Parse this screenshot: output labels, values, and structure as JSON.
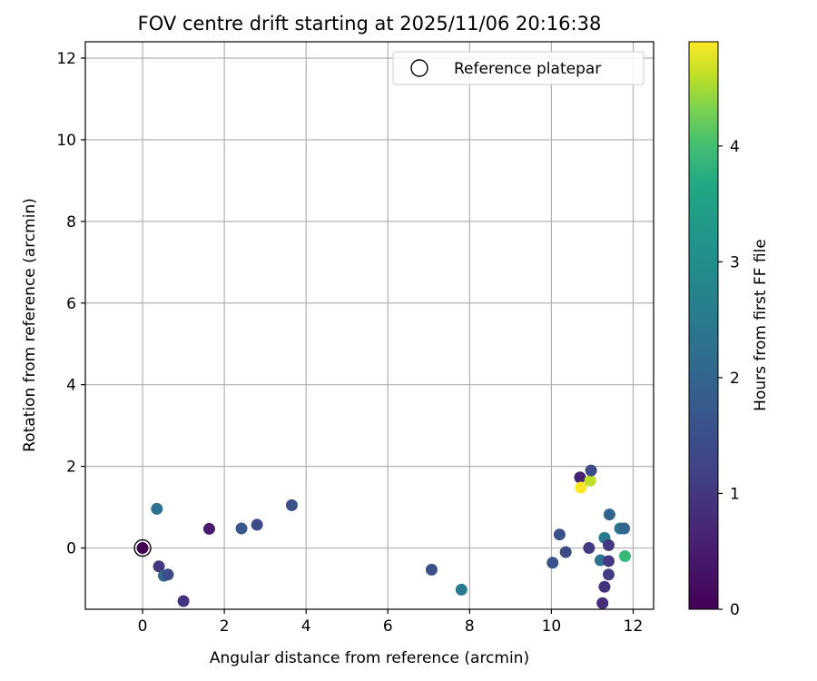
{
  "chart_data": {
    "type": "scatter",
    "title": "FOV centre drift starting at 2025/11/06 20:16:38",
    "xlabel": "Angular distance from reference (arcmin)",
    "ylabel": "Rotation from reference (arcmin)",
    "xlim": [
      -1.4,
      12.5
    ],
    "ylim": [
      -1.5,
      12.4
    ],
    "x_ticks": [
      0,
      2,
      4,
      6,
      8,
      10,
      12
    ],
    "y_ticks": [
      0,
      2,
      4,
      6,
      8,
      10,
      12
    ],
    "grid": true,
    "legend": {
      "position": "top-right",
      "entries": [
        "Reference platepar"
      ]
    },
    "colorbar": {
      "label": "Hours from first FF file",
      "range": [
        0,
        4.9
      ],
      "ticks": [
        0,
        1,
        2,
        3,
        4
      ],
      "colormap": "viridis"
    },
    "reference_point": {
      "x": 0,
      "y": 0
    },
    "series": [
      {
        "name": "FF files",
        "points": [
          {
            "x": 0.0,
            "y": 0.0,
            "c": 0.0
          },
          {
            "x": 0.35,
            "y": 0.96,
            "c": 2.3
          },
          {
            "x": 0.4,
            "y": -0.45,
            "c": 1.0
          },
          {
            "x": 0.52,
            "y": -0.68,
            "c": 2.1
          },
          {
            "x": 0.62,
            "y": -0.65,
            "c": 1.4
          },
          {
            "x": 1.0,
            "y": -1.3,
            "c": 0.9
          },
          {
            "x": 1.63,
            "y": 0.47,
            "c": 0.5
          },
          {
            "x": 2.42,
            "y": 0.48,
            "c": 1.7
          },
          {
            "x": 2.8,
            "y": 0.57,
            "c": 1.4
          },
          {
            "x": 3.65,
            "y": 1.05,
            "c": 1.5
          },
          {
            "x": 7.07,
            "y": -0.53,
            "c": 1.5
          },
          {
            "x": 7.8,
            "y": -1.02,
            "c": 2.5
          },
          {
            "x": 10.03,
            "y": -0.36,
            "c": 1.6
          },
          {
            "x": 10.2,
            "y": 0.33,
            "c": 1.5
          },
          {
            "x": 10.35,
            "y": -0.1,
            "c": 1.4
          },
          {
            "x": 10.7,
            "y": 1.73,
            "c": 0.6
          },
          {
            "x": 10.72,
            "y": 1.48,
            "c": 4.9
          },
          {
            "x": 10.92,
            "y": 0.0,
            "c": 1.1
          },
          {
            "x": 10.95,
            "y": 1.65,
            "c": 4.6
          },
          {
            "x": 10.97,
            "y": 1.9,
            "c": 1.4
          },
          {
            "x": 11.2,
            "y": -0.3,
            "c": 2.4
          },
          {
            "x": 11.25,
            "y": -1.35,
            "c": 0.8
          },
          {
            "x": 11.3,
            "y": 0.25,
            "c": 2.5
          },
          {
            "x": 11.3,
            "y": -0.95,
            "c": 0.9
          },
          {
            "x": 11.4,
            "y": 0.07,
            "c": 1.0
          },
          {
            "x": 11.4,
            "y": -0.32,
            "c": 1.0
          },
          {
            "x": 11.4,
            "y": -0.65,
            "c": 1.1
          },
          {
            "x": 11.42,
            "y": 0.82,
            "c": 2.0
          },
          {
            "x": 11.68,
            "y": 0.48,
            "c": 2.4
          },
          {
            "x": 11.78,
            "y": 0.48,
            "c": 2.0
          },
          {
            "x": 11.8,
            "y": -0.2,
            "c": 3.9
          }
        ]
      }
    ]
  }
}
